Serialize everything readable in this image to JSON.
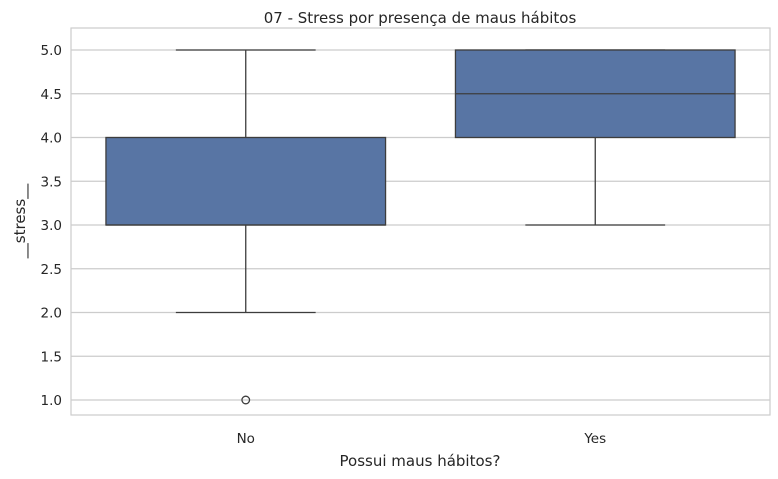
{
  "chart_data": {
    "type": "boxplot",
    "title": "07 - Stress por presença de maus hábitos",
    "xlabel": "Possui maus hábitos?",
    "ylabel": "__stress__",
    "categories": [
      "No",
      "Yes"
    ],
    "ylim": [
      0.8,
      5.2
    ],
    "yticks": [
      "1.0",
      "1.5",
      "2.0",
      "2.5",
      "3.0",
      "3.5",
      "4.0",
      "4.5",
      "5.0"
    ],
    "grid": true,
    "box_color": "#5875a4",
    "edge_color": "#3d3d3d",
    "boxes": [
      {
        "category": "No",
        "whisker_low": 2.0,
        "q1": 3.0,
        "median": 3.0,
        "q3": 4.0,
        "whisker_high": 5.0,
        "outliers": [
          1.0
        ]
      },
      {
        "category": "Yes",
        "whisker_low": 3.0,
        "q1": 4.0,
        "median": 4.5,
        "q3": 5.0,
        "whisker_high": 5.0,
        "outliers": []
      }
    ]
  }
}
